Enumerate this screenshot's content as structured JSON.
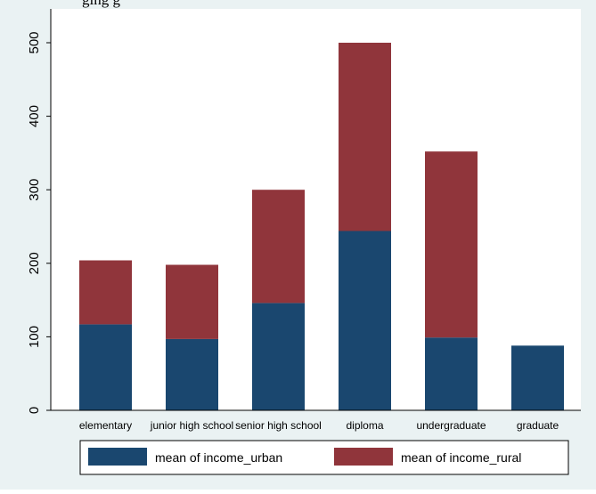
{
  "caption": "ging g",
  "chart_data": {
    "type": "bar",
    "stacked": true,
    "categories": [
      "elementary",
      "junior high school",
      "senior high school",
      "diploma",
      "undergraduate",
      "graduate"
    ],
    "series": [
      {
        "name": "mean of income_urban",
        "values": [
          117,
          97,
          146,
          244,
          99,
          88
        ]
      },
      {
        "name": "mean of income_rural",
        "values": [
          87,
          101,
          154,
          256,
          253,
          0
        ]
      }
    ],
    "yticks": [
      0,
      100,
      200,
      300,
      400,
      500
    ],
    "ylim": [
      0,
      500
    ],
    "title": "",
    "xlabel": "",
    "ylabel": "",
    "legend_position": "bottom",
    "grid": false,
    "colors": {
      "urban": "#1a476f",
      "rural": "#90353b",
      "background": "#eaf2f3",
      "plot_area": "#ffffff"
    }
  }
}
